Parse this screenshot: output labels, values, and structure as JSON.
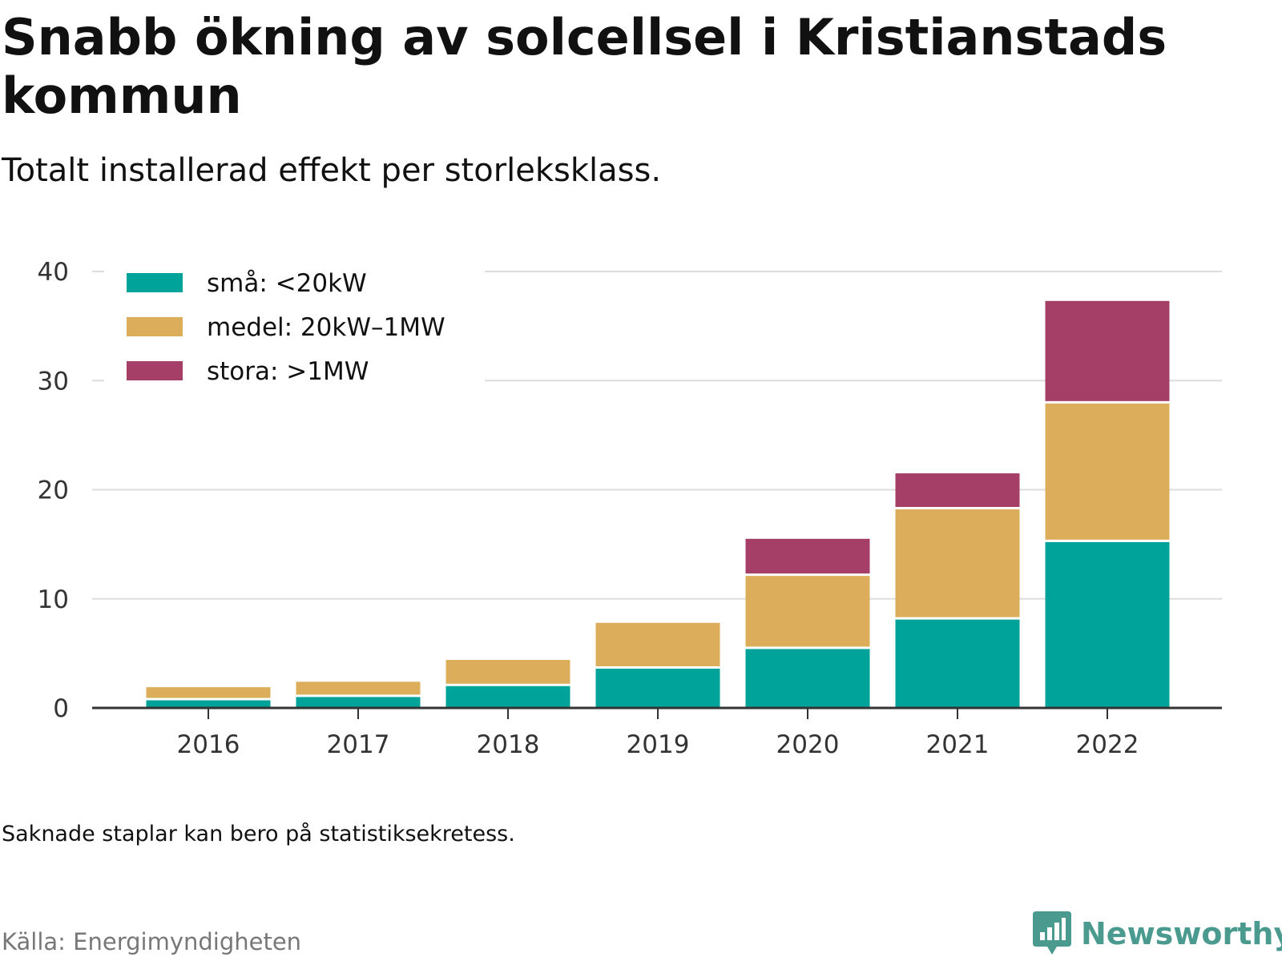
{
  "title": "Snabb ökning av solcellsel i Kristianstads kommun",
  "subtitle": "Totalt installerad effekt per storleksklass.",
  "note": "Saknade staplar kan bero på statistiksekretess.",
  "source": "Källa: Energimyndigheten",
  "brand": {
    "name": "Newsworthy",
    "logo_icon": "bar-chart-speech-bubble-icon",
    "color": "#4a9a8f"
  },
  "chart_data": {
    "type": "bar",
    "stacked": true,
    "categories": [
      "2016",
      "2017",
      "2018",
      "2019",
      "2020",
      "2021",
      "2022"
    ],
    "series": [
      {
        "name": "små: <20kW",
        "color": "#00a39a",
        "values": [
          0.7,
          1.0,
          2.0,
          3.6,
          5.4,
          8.1,
          15.2
        ]
      },
      {
        "name": "medel: 20kW–1MW",
        "color": "#dcad5b",
        "values": [
          1.2,
          1.4,
          2.4,
          4.2,
          6.7,
          10.1,
          12.7
        ]
      },
      {
        "name": "stora: >1MW",
        "color": "#a63f68",
        "values": [
          0,
          0,
          0,
          0,
          3.4,
          3.3,
          9.4
        ]
      }
    ],
    "y_ticks": [
      0,
      10,
      20,
      30,
      40
    ],
    "ylim": [
      0,
      40
    ],
    "grid": true,
    "legend_position": "top-left"
  }
}
